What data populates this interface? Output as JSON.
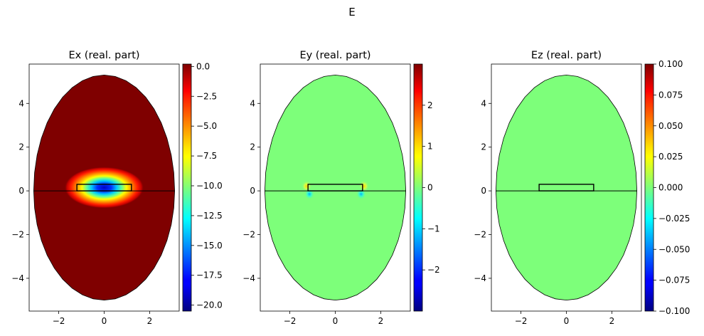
{
  "suptitle": "E",
  "chart_data": [
    {
      "type": "heatmap",
      "title": "Ex (real. part)",
      "xlabel": "",
      "ylabel": "",
      "xlim": [
        -3.3,
        3.3
      ],
      "ylim": [
        -5.5,
        5.8
      ],
      "xticks": [
        -2,
        0,
        2
      ],
      "xtick_labels": [
        "−2",
        "0",
        "2"
      ],
      "yticks": [
        -4,
        -2,
        0,
        2,
        4
      ],
      "ytick_labels": [
        "−4",
        "−2",
        "0",
        "2",
        "4"
      ],
      "domain": {
        "shape": "ellipse-like",
        "x_range": [
          -3.1,
          3.1
        ],
        "y_range": [
          -5.0,
          5.3
        ]
      },
      "structure_box": {
        "x": [
          -1.2,
          1.2
        ],
        "y": [
          0.0,
          0.3
        ]
      },
      "background_value": 0.0,
      "hotspot": {
        "center": [
          0.0,
          0.15
        ],
        "min_value": -20.5
      },
      "colormap": "jet",
      "colorbar": {
        "range": [
          -20.5,
          0.2
        ],
        "ticks": [
          0.0,
          -2.5,
          -5.0,
          -7.5,
          -10.0,
          -12.5,
          -15.0,
          -17.5,
          -20.0
        ],
        "tick_labels": [
          "0.0",
          "−2.5",
          "−5.0",
          "−7.5",
          "−10.0",
          "−12.5",
          "−15.0",
          "−17.5",
          "−20.0"
        ]
      }
    },
    {
      "type": "heatmap",
      "title": "Ey (real. part)",
      "xlabel": "",
      "ylabel": "",
      "xlim": [
        -3.3,
        3.3
      ],
      "ylim": [
        -5.5,
        5.8
      ],
      "xticks": [
        -2,
        0,
        2
      ],
      "xtick_labels": [
        "−2",
        "0",
        "2"
      ],
      "yticks": [
        -4,
        -2,
        0,
        2,
        4
      ],
      "ytick_labels": [
        "−4",
        "−2",
        "0",
        "2",
        "4"
      ],
      "domain": {
        "shape": "ellipse-like",
        "x_range": [
          -3.1,
          3.1
        ],
        "y_range": [
          -5.0,
          5.3
        ]
      },
      "structure_box": {
        "x": [
          -1.2,
          1.2
        ],
        "y": [
          0.0,
          0.3
        ]
      },
      "background_value": 0.0,
      "corner_hotspots": [
        {
          "center": [
            -1.2,
            0.05
          ],
          "note": "bipolar"
        },
        {
          "center": [
            1.2,
            0.05
          ],
          "note": "bipolar"
        }
      ],
      "colormap": "jet",
      "colorbar": {
        "range": [
          -3.0,
          3.0
        ],
        "ticks": [
          2,
          1,
          0,
          -1,
          -2
        ],
        "tick_labels": [
          "2",
          "1",
          "0",
          "−1",
          "−2"
        ]
      }
    },
    {
      "type": "heatmap",
      "title": "Ez (real. part)",
      "xlabel": "",
      "ylabel": "",
      "xlim": [
        -3.3,
        3.3
      ],
      "ylim": [
        -5.5,
        5.8
      ],
      "xticks": [
        -2,
        0,
        2
      ],
      "xtick_labels": [
        "−2",
        "0",
        "2"
      ],
      "yticks": [
        -4,
        -2,
        0,
        2,
        4
      ],
      "ytick_labels": [
        "−4",
        "−2",
        "0",
        "2",
        "4"
      ],
      "domain": {
        "shape": "ellipse-like",
        "x_range": [
          -3.1,
          3.1
        ],
        "y_range": [
          -5.0,
          5.3
        ]
      },
      "structure_box": {
        "x": [
          -1.2,
          1.2
        ],
        "y": [
          0.0,
          0.3
        ]
      },
      "background_value": 0.0,
      "colormap": "jet",
      "colorbar": {
        "range": [
          -0.1,
          0.1
        ],
        "ticks": [
          0.1,
          0.075,
          0.05,
          0.025,
          0.0,
          -0.025,
          -0.05,
          -0.075,
          -0.1
        ],
        "tick_labels": [
          "0.100",
          "0.075",
          "0.050",
          "0.025",
          "0.000",
          "−0.025",
          "−0.050",
          "−0.075",
          "−0.100"
        ]
      }
    }
  ]
}
